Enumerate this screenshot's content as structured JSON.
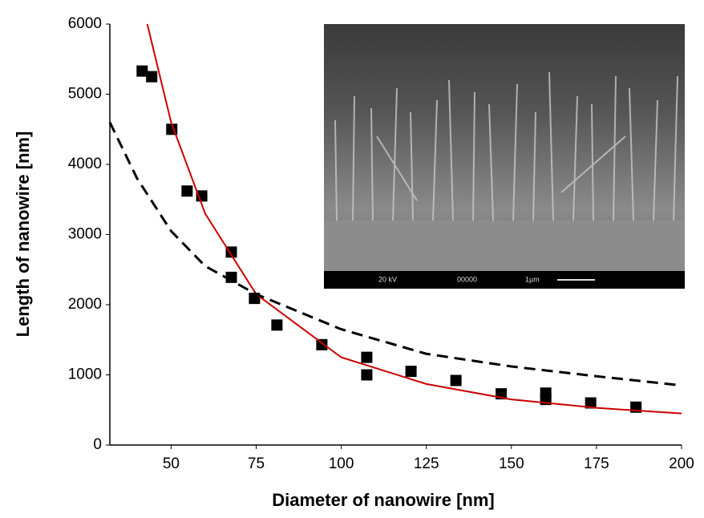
{
  "chart_data": {
    "type": "scatter",
    "x_label": "Diameter of nanowire [nm]",
    "y_label": "Length of nanowire [nm]",
    "xlim": [
      32,
      200
    ],
    "xticks": [
      50,
      75,
      100,
      125,
      150,
      175,
      200
    ],
    "ylim": [
      0,
      6000
    ],
    "yticks": [
      0,
      1000,
      2000,
      3000,
      4000,
      5000,
      6000
    ],
    "inset_caption": [
      "20 kV",
      "00000",
      "1µm"
    ],
    "series": [
      {
        "type": "scatter",
        "color": "#000000",
        "x": [
          41.5,
          44.3,
          50.2,
          54.7,
          59,
          67.7,
          67.7,
          74.5,
          81.1,
          94.3,
          107.5,
          107.5,
          120.5,
          133.7,
          147,
          160.1,
          160.1,
          173.3,
          186.6
        ],
        "values": [
          5330,
          5250,
          4500,
          3620,
          3550,
          2750,
          2390,
          2090,
          1710,
          1430,
          1250,
          1000,
          1050,
          920,
          730,
          740,
          650,
          600,
          540
        ]
      },
      {
        "type": "line",
        "color": "#cc0000",
        "dashed": false,
        "x": [
          43,
          50,
          60,
          75,
          100,
          125,
          150,
          175,
          200
        ],
        "values": [
          6000,
          4600,
          3300,
          2150,
          1250,
          870,
          650,
          530,
          450
        ]
      },
      {
        "type": "line",
        "color": "#000000",
        "dashed": true,
        "x": [
          32,
          40,
          50,
          60,
          75,
          100,
          125,
          150,
          175,
          200
        ],
        "values": [
          4600,
          3800,
          3050,
          2550,
          2150,
          1650,
          1300,
          1120,
          980,
          850
        ]
      }
    ]
  }
}
